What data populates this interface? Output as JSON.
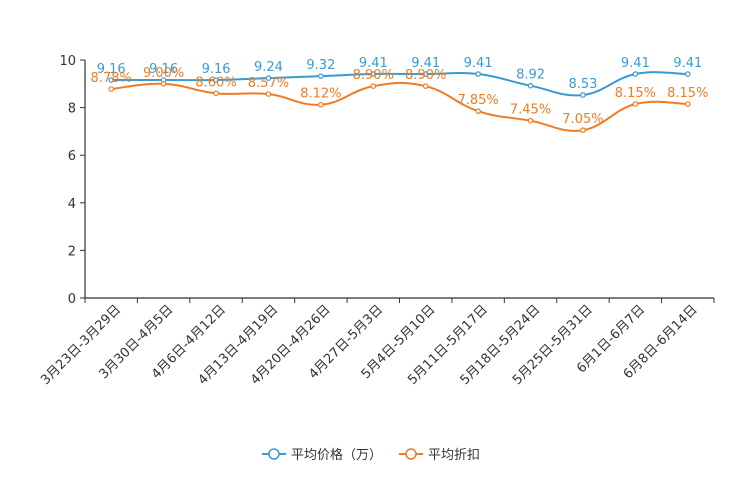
{
  "chart_data": {
    "type": "line",
    "categories": [
      "3月23日-3月29日",
      "3月30日-4月5日",
      "4月6日-4月12日",
      "4月13日-4月19日",
      "4月20日-4月26日",
      "4月27日-5月3日",
      "5月4日-5月10日",
      "5月11日-5月17日",
      "5月18日-5月24日",
      "5月25日-5月31日",
      "6月1日-6月7日",
      "6月8日-6月14日"
    ],
    "ylim": [
      0,
      10
    ],
    "yticks": [
      "0",
      "2",
      "4",
      "6",
      "8",
      "10"
    ],
    "series": [
      {
        "name": "平均价格（万）",
        "color": "#3a9bd0",
        "values": [
          9.16,
          9.16,
          9.16,
          9.24,
          9.32,
          9.41,
          9.41,
          9.41,
          8.92,
          8.53,
          9.41,
          9.41
        ],
        "labels": [
          "9.16",
          "9.16",
          "9.16",
          "9.24",
          "9.32",
          "9.41",
          "9.41",
          "9.41",
          "8.92",
          "8.53",
          "9.41",
          "9.41"
        ]
      },
      {
        "name": "平均折扣",
        "color": "#f07b22",
        "values": [
          8.78,
          9.0,
          8.6,
          8.57,
          8.12,
          8.9,
          8.9,
          7.85,
          7.45,
          7.05,
          8.15,
          8.15
        ],
        "labels": [
          "8.78%",
          "9.00%",
          "8.60%",
          "8.57%",
          "8.12%",
          "8.90%",
          "8.90%",
          "7.85%",
          "7.45%",
          "7.05%",
          "8.15%",
          "8.15%"
        ]
      }
    ],
    "legend_position": "bottom-center"
  }
}
